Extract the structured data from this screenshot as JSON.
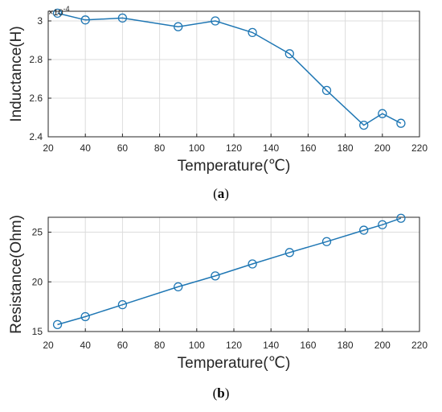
{
  "chart_data": [
    {
      "type": "line",
      "panel": "(a)",
      "caption_letter": "a",
      "xlabel": "Temperature(℃)",
      "ylabel": "Inductance(H)",
      "y_exponent_base": "×10",
      "y_exponent_power": "-4",
      "x": [
        25,
        40,
        60,
        90,
        110,
        130,
        150,
        170,
        190,
        200,
        210
      ],
      "series": [
        {
          "values": [
            3.04,
            3.005,
            3.015,
            2.97,
            3.0,
            2.94,
            2.83,
            2.64,
            2.46,
            2.52,
            2.47
          ]
        }
      ],
      "xlim": [
        20,
        220
      ],
      "ylim": [
        2.4,
        3.05
      ],
      "xticks": [
        20,
        40,
        60,
        80,
        100,
        120,
        140,
        160,
        180,
        200,
        220
      ],
      "yticks": [
        2.4,
        2.6,
        2.8,
        3
      ],
      "ytick_labels": [
        "2.4",
        "2.6",
        "2.8",
        "3"
      ],
      "grid": true,
      "color": "#1f77b4"
    },
    {
      "type": "line",
      "panel": "(b)",
      "caption_letter": "b",
      "xlabel": "Temperature(℃)",
      "ylabel": "Resistance(Ohm)",
      "x": [
        25,
        40,
        60,
        90,
        110,
        130,
        150,
        170,
        190,
        200,
        210
      ],
      "series": [
        {
          "values": [
            15.7,
            16.5,
            17.7,
            19.5,
            20.6,
            21.8,
            22.95,
            24.05,
            25.2,
            25.75,
            26.4
          ]
        }
      ],
      "xlim": [
        20,
        220
      ],
      "ylim": [
        15,
        26.5
      ],
      "xticks": [
        20,
        40,
        60,
        80,
        100,
        120,
        140,
        160,
        180,
        200,
        220
      ],
      "yticks": [
        15,
        20,
        25
      ],
      "ytick_labels": [
        "15",
        "20",
        "25"
      ],
      "grid": true,
      "color": "#1f77b4"
    }
  ]
}
